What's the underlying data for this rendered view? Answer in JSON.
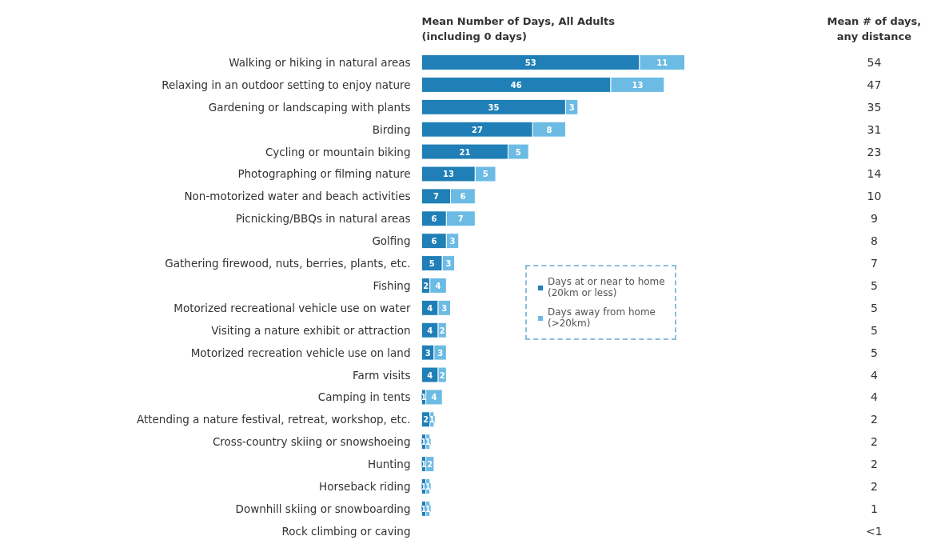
{
  "chart_data": {
    "type": "bar",
    "orientation": "horizontal",
    "stacked": true,
    "relative": false,
    "title": "Mean Number of Days, All Adults\n(including 0 days)",
    "categories": [
      "Walking or hiking in natural areas",
      "Relaxing in an outdoor setting to enjoy nature",
      "Gardening or landscaping with plants",
      "Birding",
      "Cycling or mountain biking",
      "Photographing or filming nature",
      "Non-motorized water and beach activities",
      "Picnicking/BBQs in natural areas",
      "Golfing",
      "Gathering firewood, nuts, berries, plants, etc.",
      "Fishing",
      "Motorized recreational vehicle use on water",
      "Visiting a nature exhibit or attraction",
      "Motorized recreation vehicle use on land",
      "Farm visits",
      "Camping in tents",
      "Attending a nature festival, retreat, workshop, etc.",
      "Cross-country skiing or snowshoeing",
      "Hunting",
      "Horseback riding",
      "Downhill skiing or snowboarding",
      "Rock climbing or caving"
    ],
    "series": [
      {
        "name": "Days at or near to home\n(20km or less)",
        "color": "#1f7fb6",
        "values": [
          53,
          46,
          35,
          27,
          21,
          13,
          7,
          6,
          6,
          5,
          2,
          4,
          4,
          3,
          4,
          1,
          2,
          1,
          1,
          1,
          1,
          null
        ],
        "value_labels": [
          "53",
          "46",
          "35",
          "27",
          "21",
          "13",
          "7",
          "6",
          "6",
          "5",
          "2",
          "4",
          "4",
          "3",
          "4",
          "1",
          "2",
          "1",
          "1",
          "1",
          "1",
          null
        ]
      },
      {
        "name": "Days away from home\n(>20km)",
        "color": "#6bbbe4",
        "values": [
          11,
          13,
          3,
          8,
          5,
          5,
          6,
          7,
          3,
          3,
          4,
          3,
          2,
          3,
          2,
          4,
          1,
          1,
          2,
          1,
          1,
          null
        ],
        "value_labels": [
          "11",
          "13",
          "3",
          "8",
          "5",
          "5",
          "6",
          "7",
          "3",
          "3",
          "4",
          "3",
          "2",
          "3",
          "2",
          "4",
          "1",
          "1",
          "2",
          "1",
          "1",
          null
        ]
      }
    ],
    "annotations": [
      "Mean # of days,\nany distance",
      "54",
      "47",
      "35",
      "31",
      "23",
      "14",
      "10",
      "9",
      "8",
      "7",
      "5",
      "5",
      "5",
      "5",
      "4",
      "4",
      "2",
      "2",
      "2",
      "2",
      "1",
      "<1"
    ],
    "legend": "center",
    "grid": false
  }
}
